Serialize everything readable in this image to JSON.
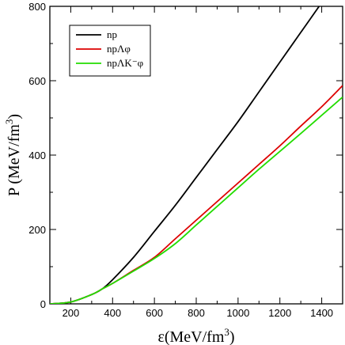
{
  "chart_data": {
    "type": "line",
    "xlabel": "ε(MeV/fm3)",
    "ylabel": "P (MeV/fm3)",
    "xlim": [
      100,
      1500
    ],
    "ylim": [
      0,
      800
    ],
    "x_ticks": [
      "200",
      "400",
      "600",
      "800",
      "1000",
      "1200",
      "1400"
    ],
    "y_ticks": [
      "0",
      "200",
      "400",
      "600",
      "800"
    ],
    "grid": false,
    "legend_placement": "top-left",
    "series": [
      {
        "name": "np",
        "color": "#000000",
        "x": [
          100,
          200,
          300,
          350,
          400,
          500,
          600,
          700,
          800,
          900,
          1000,
          1100,
          1200,
          1300,
          1400,
          1460
        ],
        "y": [
          0,
          5,
          25,
          40,
          65,
          125,
          195,
          265,
          340,
          415,
          490,
          570,
          650,
          730,
          810,
          860
        ]
      },
      {
        "name": "npΛφ",
        "color": "#dd0000",
        "x": [
          100,
          200,
          300,
          350,
          400,
          500,
          600,
          700,
          800,
          900,
          1000,
          1100,
          1200,
          1300,
          1400,
          1500
        ],
        "y": [
          0,
          5,
          25,
          40,
          55,
          90,
          125,
          175,
          225,
          275,
          325,
          375,
          425,
          478,
          530,
          587
        ]
      },
      {
        "name": "npΛK⁻φ",
        "color": "#22dd00",
        "x": [
          100,
          200,
          300,
          350,
          400,
          500,
          600,
          700,
          800,
          900,
          1000,
          1100,
          1200,
          1300,
          1400,
          1500
        ],
        "y": [
          0,
          5,
          25,
          40,
          55,
          88,
          122,
          162,
          212,
          262,
          312,
          362,
          410,
          458,
          507,
          556
        ]
      }
    ]
  }
}
